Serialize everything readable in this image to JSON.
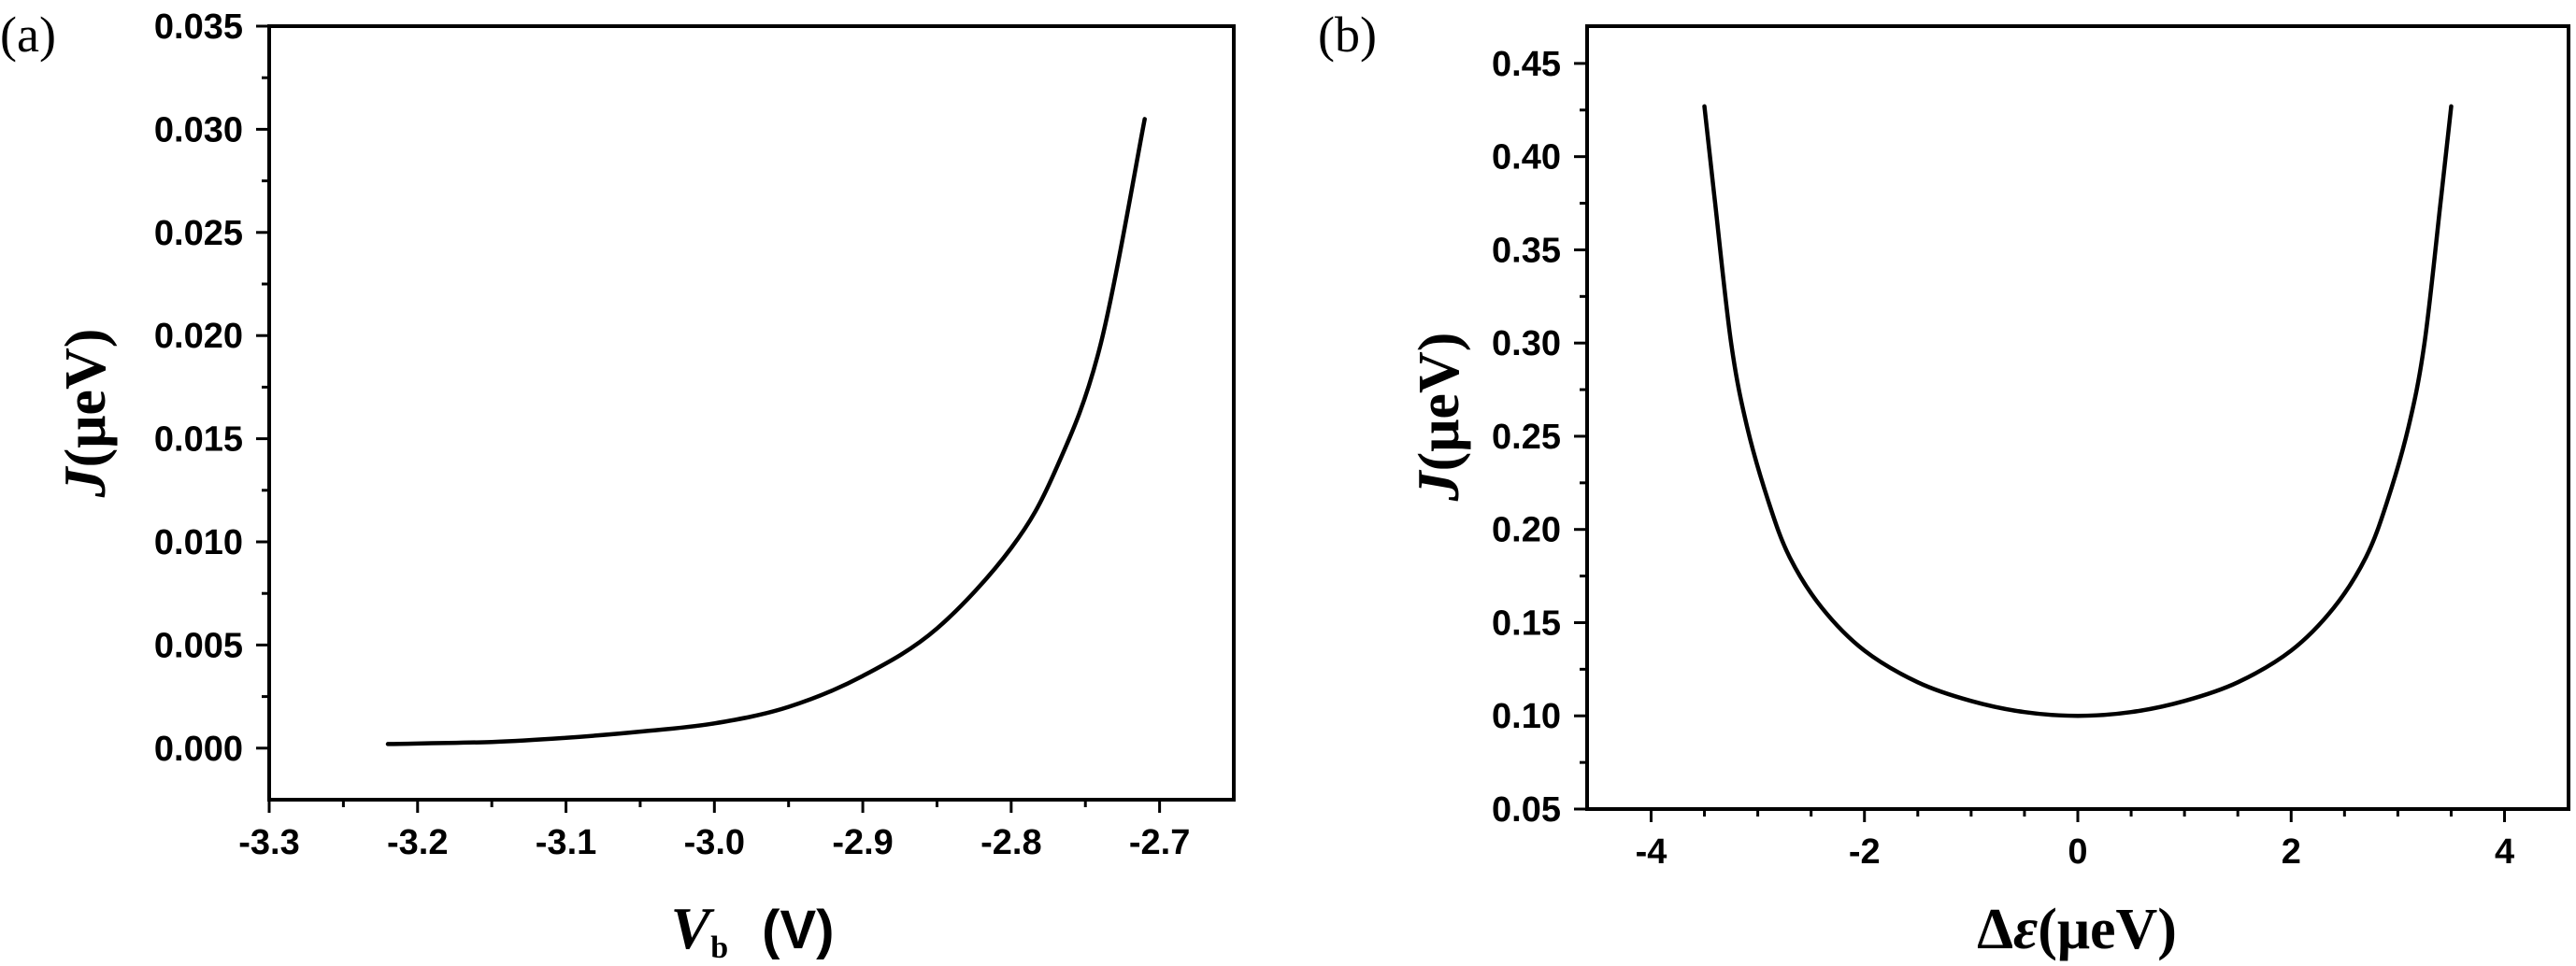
{
  "chart_data": [
    {
      "type": "line",
      "panel_label": "(a)",
      "xlabel": {
        "main": "V",
        "sub": "b",
        "unit": "(V)"
      },
      "ylabel": {
        "main": "J",
        "unit": "(μeV)"
      },
      "xlim": [
        -3.3,
        -2.65
      ],
      "ylim": [
        -0.0025,
        0.035
      ],
      "xticks": [
        "-3.3",
        "-3.2",
        "-3.1",
        "-3.0",
        "-2.9",
        "-2.8",
        "-2.7"
      ],
      "xtick_values": [
        -3.3,
        -3.2,
        -3.1,
        -3.0,
        -2.9,
        -2.8,
        -2.7
      ],
      "yticks": [
        "0.000",
        "0.005",
        "0.010",
        "0.015",
        "0.020",
        "0.025",
        "0.030",
        "0.035"
      ],
      "ytick_values": [
        0.0,
        0.005,
        0.01,
        0.015,
        0.02,
        0.025,
        0.03,
        0.035
      ],
      "series": [
        {
          "x": [
            -3.22,
            -3.15,
            -3.1,
            -3.05,
            -3.0,
            -2.95,
            -2.9,
            -2.85,
            -2.8,
            -2.77,
            -2.74,
            -2.71
          ],
          "y": [
            0.0002,
            0.0003,
            0.0005,
            0.0008,
            0.0012,
            0.002,
            0.0035,
            0.0058,
            0.0097,
            0.0135,
            0.0195,
            0.0305
          ]
        }
      ]
    },
    {
      "type": "line",
      "panel_label": "(b)",
      "xlabel": {
        "main": "Δ",
        "var": "ε",
        "unit": "(μeV)"
      },
      "ylabel": {
        "main": "J",
        "unit": "(μeV)"
      },
      "xlim": [
        -4.6,
        4.6
      ],
      "ylim": [
        0.05,
        0.47
      ],
      "xticks": [
        "-4",
        "-2",
        "0",
        "2",
        "4"
      ],
      "xtick_values": [
        -4,
        -2,
        0,
        2,
        4
      ],
      "yticks": [
        "0.05",
        "0.10",
        "0.15",
        "0.20",
        "0.25",
        "0.30",
        "0.35",
        "0.40",
        "0.45"
      ],
      "ytick_values": [
        0.05,
        0.1,
        0.15,
        0.2,
        0.25,
        0.3,
        0.35,
        0.4,
        0.45
      ],
      "series": [
        {
          "x": [
            -3.5,
            -3.4,
            -3.25,
            -3.1,
            -2.9,
            -2.7,
            -2.4,
            -2.0,
            -1.5,
            -1.0,
            -0.5,
            0.0,
            0.5,
            1.0,
            1.5,
            2.0,
            2.4,
            2.7,
            2.9,
            3.1,
            3.25,
            3.4,
            3.5
          ],
          "y": [
            0.427,
            0.375,
            0.3,
            0.255,
            0.215,
            0.185,
            0.158,
            0.135,
            0.118,
            0.108,
            0.102,
            0.1,
            0.102,
            0.108,
            0.118,
            0.135,
            0.158,
            0.185,
            0.215,
            0.255,
            0.3,
            0.375,
            0.427
          ]
        }
      ]
    }
  ]
}
